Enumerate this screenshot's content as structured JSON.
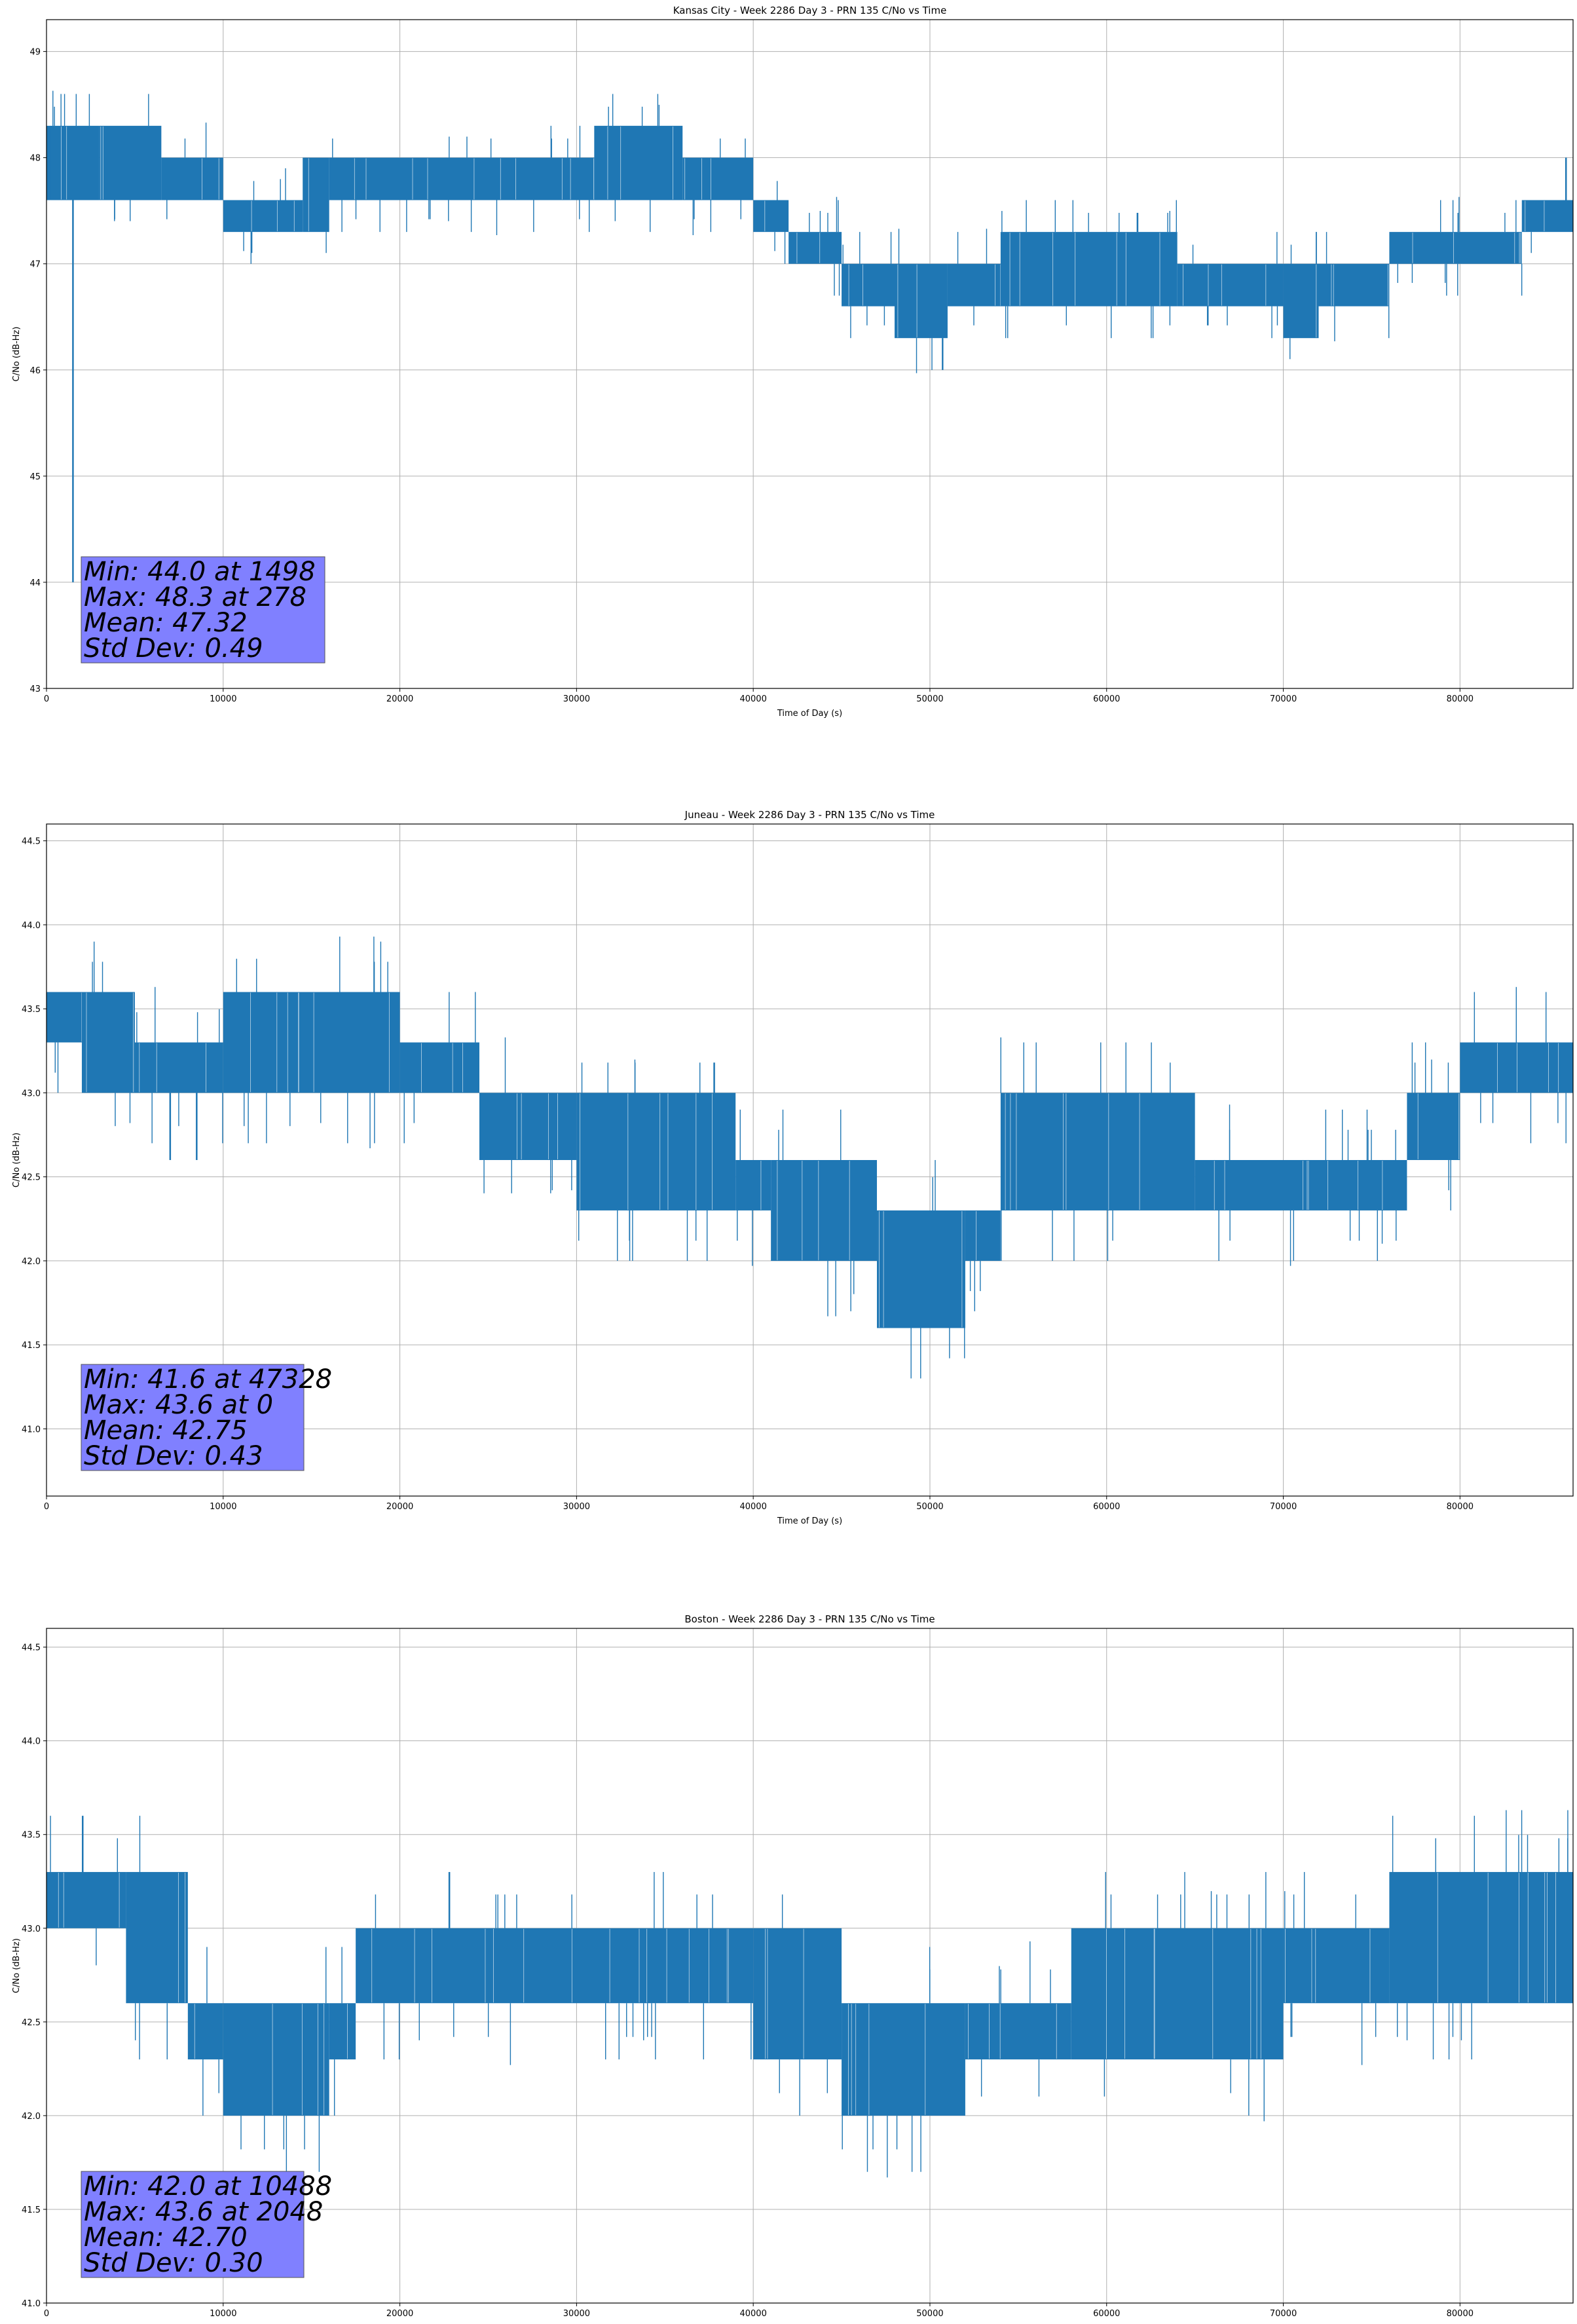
{
  "figure": {
    "background": "#ffffff"
  },
  "colors": {
    "series": "#1f77b4",
    "grid": "#b0b0b0",
    "stats_box": "#8080ff",
    "axes": "#000000"
  },
  "chart_data": [
    {
      "type": "line",
      "title": "Kansas City - Week 2286 Day 3 - PRN 135 C/No vs Time",
      "xlabel": "Time of Day (s)",
      "ylabel": "C/No (dB-Hz)",
      "xlim": [
        0,
        86400
      ],
      "ylim": [
        43,
        49.3
      ],
      "xticks": [
        0,
        10000,
        20000,
        30000,
        40000,
        50000,
        60000,
        70000,
        80000
      ],
      "yticks": [
        43,
        44,
        45,
        46,
        47,
        48,
        49
      ],
      "ytick_labels": [
        "43",
        "44",
        "45",
        "46",
        "47",
        "48",
        "49"
      ],
      "grid": true,
      "series": [
        {
          "values_note_free": true,
          "bands": [
            {
              "x": [
                0,
                3000
              ],
              "low": 47.6,
              "high": 48.3
            },
            {
              "x": [
                3000,
                6500
              ],
              "low": 47.6,
              "high": 48.3
            },
            {
              "x": [
                6500,
                10000
              ],
              "low": 47.6,
              "high": 48.0
            },
            {
              "x": [
                10000,
                14500
              ],
              "low": 47.3,
              "high": 47.6
            },
            {
              "x": [
                14500,
                16000
              ],
              "low": 47.3,
              "high": 48.0
            },
            {
              "x": [
                16000,
                31000
              ],
              "low": 47.6,
              "high": 48.0
            },
            {
              "x": [
                31000,
                36000
              ],
              "low": 47.6,
              "high": 48.3
            },
            {
              "x": [
                36000,
                40000
              ],
              "low": 47.6,
              "high": 48.0
            },
            {
              "x": [
                40000,
                42000
              ],
              "low": 47.3,
              "high": 47.6
            },
            {
              "x": [
                42000,
                45000
              ],
              "low": 47.0,
              "high": 47.3
            },
            {
              "x": [
                45000,
                48000
              ],
              "low": 46.6,
              "high": 47.0
            },
            {
              "x": [
                48000,
                51000
              ],
              "low": 46.3,
              "high": 47.0
            },
            {
              "x": [
                51000,
                54000
              ],
              "low": 46.6,
              "high": 47.0
            },
            {
              "x": [
                54000,
                64000
              ],
              "low": 46.6,
              "high": 47.3
            },
            {
              "x": [
                64000,
                70000
              ],
              "low": 46.6,
              "high": 47.0
            },
            {
              "x": [
                70000,
                72000
              ],
              "low": 46.3,
              "high": 47.0
            },
            {
              "x": [
                72000,
                76000
              ],
              "low": 46.6,
              "high": 47.0
            },
            {
              "x": [
                76000,
                83500
              ],
              "low": 47.0,
              "high": 47.3
            },
            {
              "x": [
                83500,
                86400
              ],
              "low": 47.3,
              "high": 47.6
            }
          ],
          "points": [
            {
              "x": 278,
              "y": 48.3
            },
            {
              "x": 1498,
              "y": 44.0
            },
            {
              "x": 86000,
              "y": 48.0
            }
          ]
        }
      ],
      "stats": {
        "lines": [
          "Min: 44.0 at 1498",
          "Max: 48.3 at 278",
          "Mean: 47.32",
          "Std Dev: 0.49"
        ]
      }
    },
    {
      "type": "line",
      "title": "Juneau - Week 2286 Day 3 - PRN 135 C/No vs Time",
      "xlabel": "Time of Day (s)",
      "ylabel": "C/No (dB-Hz)",
      "xlim": [
        0,
        86400
      ],
      "ylim": [
        40.6,
        44.6
      ],
      "xticks": [
        0,
        10000,
        20000,
        30000,
        40000,
        50000,
        60000,
        70000,
        80000
      ],
      "yticks": [
        41.0,
        41.5,
        42.0,
        42.5,
        43.0,
        43.5,
        44.0,
        44.5
      ],
      "ytick_labels": [
        "41.0",
        "41.5",
        "42.0",
        "42.5",
        "43.0",
        "43.5",
        "44.0",
        "44.5"
      ],
      "grid": true,
      "series": [
        {
          "bands": [
            {
              "x": [
                0,
                2000
              ],
              "low": 43.3,
              "high": 43.6
            },
            {
              "x": [
                2000,
                5000
              ],
              "low": 43.0,
              "high": 43.6
            },
            {
              "x": [
                5000,
                10000
              ],
              "low": 43.0,
              "high": 43.3
            },
            {
              "x": [
                10000,
                20000
              ],
              "low": 43.0,
              "high": 43.6
            },
            {
              "x": [
                20000,
                24500
              ],
              "low": 43.0,
              "high": 43.3
            },
            {
              "x": [
                24500,
                30000
              ],
              "low": 42.6,
              "high": 43.0
            },
            {
              "x": [
                30000,
                39000
              ],
              "low": 42.3,
              "high": 43.0
            },
            {
              "x": [
                39000,
                41000
              ],
              "low": 42.3,
              "high": 42.6
            },
            {
              "x": [
                41000,
                47000
              ],
              "low": 42.0,
              "high": 42.6
            },
            {
              "x": [
                47000,
                52000
              ],
              "low": 41.6,
              "high": 42.3
            },
            {
              "x": [
                52000,
                54000
              ],
              "low": 42.0,
              "high": 42.3
            },
            {
              "x": [
                54000,
                65000
              ],
              "low": 42.3,
              "high": 43.0
            },
            {
              "x": [
                65000,
                77000
              ],
              "low": 42.3,
              "high": 42.6
            },
            {
              "x": [
                77000,
                80000
              ],
              "low": 42.6,
              "high": 43.0
            },
            {
              "x": [
                80000,
                86400
              ],
              "low": 43.0,
              "high": 43.3
            }
          ],
          "points": [
            {
              "x": 0,
              "y": 43.6
            },
            {
              "x": 47328,
              "y": 41.6
            },
            {
              "x": 7000,
              "y": 42.6
            },
            {
              "x": 8500,
              "y": 42.6
            }
          ]
        }
      ],
      "stats": {
        "lines": [
          "Min: 41.6 at 47328",
          "Max: 43.6 at 0",
          "Mean: 42.75",
          "Std Dev: 0.43"
        ]
      }
    },
    {
      "type": "line",
      "title": "Boston - Week 2286 Day 3 - PRN 135 C/No vs Time",
      "xlabel": "Time of Day (s)",
      "ylabel": "C/No (dB-Hz)",
      "xlim": [
        0,
        86400
      ],
      "ylim": [
        41.0,
        44.6
      ],
      "xticks": [
        0,
        10000,
        20000,
        30000,
        40000,
        50000,
        60000,
        70000,
        80000
      ],
      "yticks": [
        41.0,
        41.5,
        42.0,
        42.5,
        43.0,
        43.5,
        44.0,
        44.5
      ],
      "ytick_labels": [
        "41.0",
        "41.5",
        "42.0",
        "42.5",
        "43.0",
        "43.5",
        "44.0",
        "44.5"
      ],
      "grid": true,
      "series": [
        {
          "bands": [
            {
              "x": [
                0,
                4500
              ],
              "low": 43.0,
              "high": 43.3
            },
            {
              "x": [
                4500,
                8000
              ],
              "low": 42.6,
              "high": 43.3
            },
            {
              "x": [
                8000,
                10000
              ],
              "low": 42.3,
              "high": 42.6
            },
            {
              "x": [
                10000,
                16000
              ],
              "low": 42.0,
              "high": 42.6
            },
            {
              "x": [
                16000,
                17500
              ],
              "low": 42.3,
              "high": 42.6
            },
            {
              "x": [
                17500,
                40000
              ],
              "low": 42.6,
              "high": 43.0
            },
            {
              "x": [
                40000,
                45000
              ],
              "low": 42.3,
              "high": 43.0
            },
            {
              "x": [
                45000,
                52000
              ],
              "low": 42.0,
              "high": 42.6
            },
            {
              "x": [
                52000,
                58000
              ],
              "low": 42.3,
              "high": 42.6
            },
            {
              "x": [
                58000,
                70000
              ],
              "low": 42.3,
              "high": 43.0
            },
            {
              "x": [
                70000,
                76000
              ],
              "low": 42.6,
              "high": 43.0
            },
            {
              "x": [
                76000,
                86400
              ],
              "low": 42.6,
              "high": 43.3
            }
          ],
          "points": [
            {
              "x": 2048,
              "y": 43.6
            },
            {
              "x": 10488,
              "y": 42.0
            },
            {
              "x": 22800,
              "y": 43.3
            }
          ]
        }
      ],
      "stats": {
        "lines": [
          "Min: 42.0 at 10488",
          "Max: 43.6 at 2048",
          "Mean: 42.70",
          "Std Dev: 0.30"
        ]
      }
    }
  ]
}
